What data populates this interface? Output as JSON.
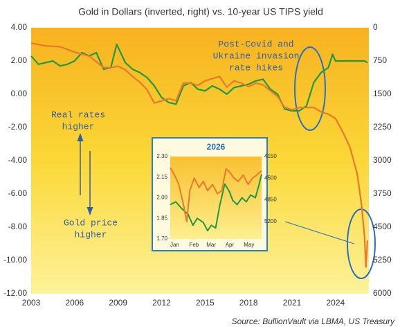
{
  "chart_data": [
    {
      "type": "line",
      "title": "Gold in Dollars (inverted, right) vs. 10-year US TIPS yield",
      "source": "Source: BullionVault via LBMA, US Treasury",
      "annotations": [
        [
          "Post-Covid and",
          "Ukraine invasion",
          "rate hikes"
        ],
        [
          "Real rates",
          "higher"
        ],
        [
          "Gold price",
          "higher"
        ]
      ],
      "xlim": [
        2003,
        2026.3
      ],
      "xticks": [
        2003,
        2006,
        2009,
        2012,
        2015,
        2018,
        2021,
        2024
      ],
      "ylim": [
        -12,
        4
      ],
      "yticks": [
        {
          "value": 4,
          "label": "4.00"
        },
        {
          "value": 2,
          "label": "2.00"
        },
        {
          "value": 0,
          "label": "0.00"
        },
        {
          "value": -2,
          "label": "-2.00"
        },
        {
          "value": -4,
          "label": "-4.00"
        },
        {
          "value": -6,
          "label": "-6.00"
        },
        {
          "value": -8,
          "label": "-8.00"
        },
        {
          "value": -10,
          "label": "-10.00"
        },
        {
          "value": -12,
          "label": "-12.00"
        }
      ],
      "y2lim": [
        0,
        6000
      ],
      "y2_inverted": true,
      "y2ticks": [
        0,
        750,
        1500,
        2250,
        3000,
        3750,
        4500,
        5250,
        6000
      ],
      "series": [
        {
          "name": "10-year US TIPS yield",
          "color": "#1f9a3c",
          "x": [
            2003,
            2003.5,
            2004,
            2004.5,
            2005,
            2005.5,
            2006,
            2006.5,
            2007,
            2007.5,
            2008,
            2008.5,
            2008.9,
            2009.5,
            2010,
            2010.5,
            2011,
            2011.5,
            2012,
            2012.5,
            2013,
            2013.5,
            2014,
            2014.5,
            2015,
            2015.5,
            2016,
            2016.5,
            2017,
            2017.5,
            2018,
            2018.5,
            2019,
            2019.5,
            2020,
            2020.5,
            2021,
            2021.5,
            2022,
            2022.5,
            2023,
            2023.5,
            2023.8,
            2024,
            2024.5,
            2025,
            2025.5,
            2026,
            2026.2
          ],
          "values": [
            2.3,
            1.8,
            1.9,
            2.0,
            1.7,
            1.8,
            2.0,
            2.5,
            2.3,
            2.5,
            1.5,
            1.6,
            3.0,
            1.9,
            1.5,
            1.3,
            1.0,
            0.5,
            -0.2,
            -0.5,
            -0.6,
            0.5,
            0.7,
            0.3,
            0.2,
            0.5,
            0.3,
            0.0,
            0.4,
            0.5,
            0.6,
            0.8,
            0.9,
            0.3,
            0.0,
            -0.9,
            -1.0,
            -1.0,
            -0.7,
            0.7,
            1.3,
            1.6,
            2.4,
            2.0,
            2.0,
            2.0,
            2.0,
            2.0,
            1.9
          ]
        },
        {
          "name": "Gold in Dollars",
          "color": "#e8792a",
          "axis": "y2",
          "x": [
            2003,
            2004,
            2005,
            2006,
            2007,
            2008,
            2008.5,
            2009,
            2009.5,
            2010,
            2010.5,
            2011,
            2011.5,
            2012,
            2012.5,
            2013,
            2013.5,
            2014,
            2014.5,
            2015,
            2015.5,
            2016,
            2016.5,
            2017,
            2017.5,
            2018,
            2018.5,
            2019,
            2019.5,
            2020,
            2020.5,
            2021,
            2021.5,
            2022,
            2022.5,
            2023,
            2023.5,
            2024,
            2024.5,
            2025,
            2025.5,
            2025.8,
            2026,
            2026.1,
            2026.2
          ],
          "values": [
            350,
            410,
            430,
            550,
            640,
            900,
            900,
            870,
            950,
            1100,
            1230,
            1400,
            1700,
            1650,
            1600,
            1650,
            1250,
            1250,
            1300,
            1200,
            1150,
            1100,
            1340,
            1200,
            1250,
            1330,
            1250,
            1290,
            1420,
            1550,
            1800,
            1850,
            1800,
            1800,
            1800,
            1900,
            1950,
            2050,
            2350,
            2700,
            3300,
            4000,
            4700,
            5400,
            4800
          ]
        }
      ]
    },
    {
      "type": "line",
      "title": "2026",
      "xlim": [
        1,
        150
      ],
      "xticks": [
        {
          "value": 1,
          "label": "Jan"
        },
        {
          "value": 32,
          "label": "Feb"
        },
        {
          "value": 60,
          "label": "Mar"
        },
        {
          "value": 91,
          "label": "Apr"
        },
        {
          "value": 121,
          "label": "May"
        }
      ],
      "ylim": [
        1.7,
        2.3
      ],
      "yticks": [
        {
          "value": 2.3,
          "label": "2.30"
        },
        {
          "value": 2.15,
          "label": "2.15"
        },
        {
          "value": 2.0,
          "label": "2.00"
        },
        {
          "value": 1.85,
          "label": "1.85"
        },
        {
          "value": 1.7,
          "label": "1.70"
        }
      ],
      "y2lim": [
        4150,
        5480
      ],
      "y2_inverted": true,
      "y2ticks": [
        4150,
        4500,
        4850,
        5200
      ],
      "series": [
        {
          "name": "10-year US TIPS yield",
          "color": "#1f9a3c",
          "x": [
            1,
            10,
            20,
            30,
            38,
            45,
            55,
            62,
            68,
            75,
            82,
            90,
            97,
            103,
            110,
            118,
            125,
            132,
            140,
            146,
            150
          ],
          "values": [
            1.95,
            1.97,
            1.92,
            1.88,
            1.8,
            1.85,
            1.82,
            1.76,
            1.8,
            1.78,
            1.95,
            2.1,
            2.05,
            1.98,
            1.95,
            2.0,
            1.97,
            2.02,
            2.0,
            2.1,
            2.17
          ]
        },
        {
          "name": "Gold in Dollars",
          "color": "#e8792a",
          "axis": "y2",
          "x": [
            1,
            8,
            15,
            22,
            28,
            33,
            40,
            48,
            55,
            62,
            70,
            78,
            85,
            92,
            98,
            105,
            112,
            120,
            128,
            135,
            142,
            150
          ],
          "values": [
            4330,
            4450,
            4600,
            4900,
            5200,
            4700,
            4500,
            4650,
            4550,
            4700,
            4600,
            4750,
            4700,
            4350,
            4400,
            4500,
            4550,
            4450,
            4600,
            4500,
            4450,
            4380
          ]
        }
      ]
    }
  ]
}
